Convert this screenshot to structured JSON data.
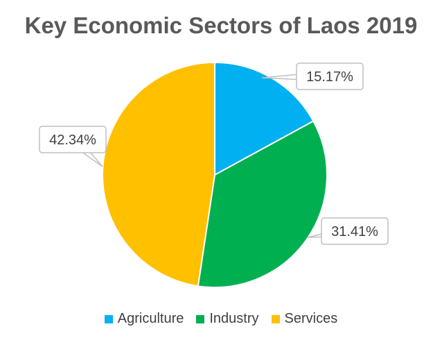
{
  "chart_data": {
    "type": "pie",
    "title": "Key Economic Sectors of Laos 2019",
    "categories": [
      "Agriculture",
      "Industry",
      "Services"
    ],
    "values": [
      15.17,
      31.41,
      42.34
    ],
    "value_labels": [
      "15.17%",
      "31.41%",
      "42.34%"
    ],
    "colors": [
      "#00B0F0",
      "#00B050",
      "#FFC000"
    ],
    "legend": "bottom"
  }
}
